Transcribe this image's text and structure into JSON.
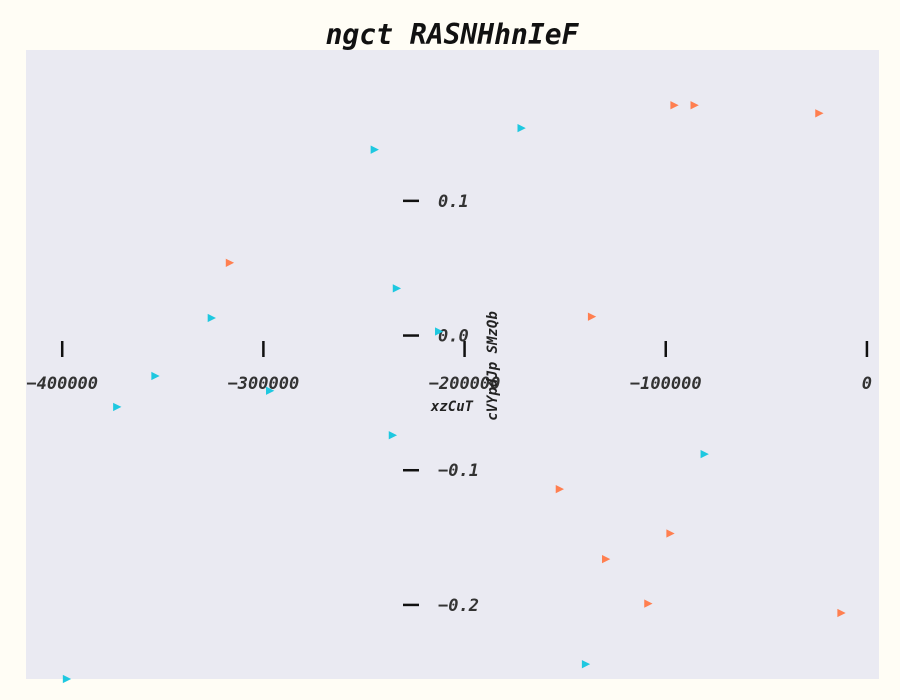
{
  "chart_data": {
    "type": "scatter",
    "title": "ngct RASNHhnIeF",
    "xlabel": "xzCuT",
    "ylabel": "cVYpdJp SMzQb",
    "xlim": [
      -418000,
      6000
    ],
    "ylim": [
      -0.255,
      0.212
    ],
    "x_ticks": [
      {
        "value": -400000,
        "label": "−400000"
      },
      {
        "value": -300000,
        "label": "−300000"
      },
      {
        "value": -200000,
        "label": "−200000"
      },
      {
        "value": -100000,
        "label": "−100000"
      },
      {
        "value": 0,
        "label": "0"
      }
    ],
    "y_ticks": [
      {
        "value": 0.1,
        "label": "0.1"
      },
      {
        "value": 0.0,
        "label": "0.0"
      },
      {
        "value": -0.1,
        "label": "−0.1"
      },
      {
        "value": -0.2,
        "label": "−0.2"
      }
    ],
    "grid": false,
    "marker": "triangle-right",
    "series": [
      {
        "color": "#ff7f50",
        "points": [
          {
            "x": -96000,
            "y": 0.171
          },
          {
            "x": -86000,
            "y": 0.171
          },
          {
            "x": -24000,
            "y": 0.165
          },
          {
            "x": -317000,
            "y": 0.054
          },
          {
            "x": -137000,
            "y": 0.014
          },
          {
            "x": -153000,
            "y": -0.114
          },
          {
            "x": -98000,
            "y": -0.147
          },
          {
            "x": -130000,
            "y": -0.166
          },
          {
            "x": -109000,
            "y": -0.199
          },
          {
            "x": -13000,
            "y": -0.206
          }
        ]
      },
      {
        "color": "#1ec8e0",
        "points": [
          {
            "x": -172000,
            "y": 0.154
          },
          {
            "x": -245000,
            "y": 0.138
          },
          {
            "x": -234000,
            "y": 0.035
          },
          {
            "x": -326000,
            "y": 0.013
          },
          {
            "x": -213000,
            "y": 0.003
          },
          {
            "x": -354000,
            "y": -0.03
          },
          {
            "x": -297000,
            "y": -0.041
          },
          {
            "x": -373000,
            "y": -0.053
          },
          {
            "x": -236000,
            "y": -0.074
          },
          {
            "x": -81000,
            "y": -0.088
          },
          {
            "x": -140000,
            "y": -0.244
          },
          {
            "x": -398000,
            "y": -0.255
          }
        ]
      }
    ]
  }
}
